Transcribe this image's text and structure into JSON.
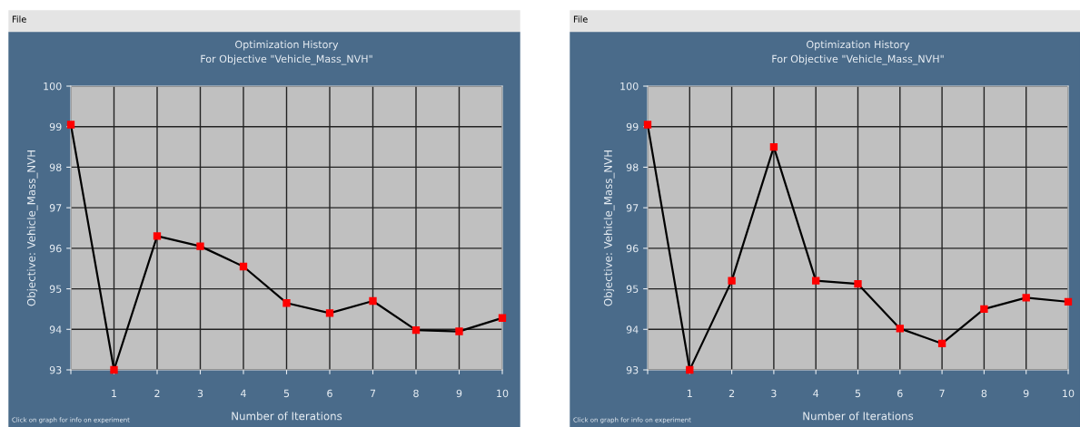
{
  "chart_data": [
    {
      "type": "line",
      "title": "Optimization History",
      "subtitle": "For Objective \"Vehicle_Mass_NVH\"",
      "xlabel": "Number of Iterations",
      "ylabel": "Objective: Vehicle_Mass_NVH",
      "x": [
        0,
        1,
        2,
        3,
        4,
        5,
        6,
        7,
        8,
        9,
        10
      ],
      "series": [
        {
          "color": "#000000",
          "values": [
            99.05,
            93.0,
            96.3,
            96.05,
            95.55,
            94.65,
            94.4,
            94.7,
            93.98,
            93.95,
            94.28
          ]
        }
      ],
      "xlim": [
        0,
        10
      ],
      "ylim": [
        93,
        100
      ],
      "xticks": [
        {
          "value": 0,
          "label": null
        },
        1,
        2,
        3,
        4,
        5,
        6,
        7,
        8,
        9,
        10
      ],
      "yticks": [
        93,
        94,
        95,
        96,
        97,
        98,
        99,
        100
      ],
      "grid": true,
      "marker": "square",
      "line_style": "solid",
      "legend": false,
      "annotations": [
        "File",
        "Click on graph for info on experiment"
      ]
    },
    {
      "type": "line",
      "title": "Optimization History",
      "subtitle": "For Objective \"Vehicle_Mass_NVH\"",
      "xlabel": "Number of Iterations",
      "ylabel": "Objective: Vehicle_Mass_NVH",
      "x": [
        0,
        1,
        2,
        3,
        4,
        5,
        6,
        7,
        8,
        9,
        10
      ],
      "series": [
        {
          "color": "#000000",
          "values": [
            99.05,
            93.0,
            95.2,
            98.5,
            95.2,
            95.12,
            94.02,
            93.65,
            94.5,
            94.78,
            94.68
          ]
        }
      ],
      "xlim": [
        0,
        10
      ],
      "ylim": [
        93,
        100
      ],
      "xticks": [
        {
          "value": 0,
          "label": null
        },
        1,
        2,
        3,
        4,
        5,
        6,
        7,
        8,
        9,
        10
      ],
      "yticks": [
        93,
        94,
        95,
        96,
        97,
        98,
        99,
        100
      ],
      "grid": true,
      "marker": "square",
      "line_style": "solid",
      "legend": false,
      "annotations": [
        "File",
        "Click on graph for info on experiment"
      ]
    }
  ]
}
